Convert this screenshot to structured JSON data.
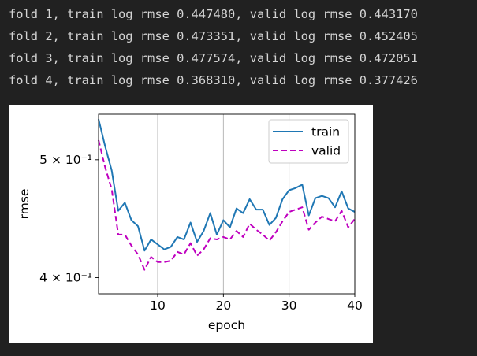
{
  "output": {
    "lines": [
      "fold 1, train log rmse 0.447480, valid log rmse 0.443170",
      "fold 2, train log rmse 0.473351, valid log rmse 0.452405",
      "fold 3, train log rmse 0.477574, valid log rmse 0.472051",
      "fold 4, train log rmse 0.368310, valid log rmse 0.377426"
    ]
  },
  "chart_data": {
    "type": "line",
    "xlabel": "epoch",
    "ylabel": "rmse",
    "yscale": "log",
    "xlim": [
      1,
      40
    ],
    "ylim": [
      0.388,
      0.545
    ],
    "x_ticks": [
      10,
      20,
      30,
      40
    ],
    "x_tick_labels": [
      "10",
      "20",
      "30",
      "40"
    ],
    "y_ticks": [
      0.4,
      0.5
    ],
    "y_tick_labels": [
      "4 × 10⁻¹",
      "5 × 10⁻¹"
    ],
    "grid": "x",
    "legend": "top-right",
    "x": [
      1,
      2,
      3,
      4,
      5,
      6,
      7,
      8,
      9,
      10,
      11,
      12,
      13,
      14,
      15,
      16,
      17,
      18,
      19,
      20,
      21,
      22,
      23,
      24,
      25,
      26,
      27,
      28,
      29,
      30,
      31,
      32,
      33,
      34,
      35,
      36,
      37,
      38,
      39,
      40
    ],
    "series": [
      {
        "name": "train",
        "color": "#1f77b4",
        "style": "solid",
        "values": [
          0.54,
          0.513,
          0.49,
          0.454,
          0.461,
          0.446,
          0.441,
          0.421,
          0.43,
          0.426,
          0.422,
          0.424,
          0.432,
          0.43,
          0.444,
          0.428,
          0.437,
          0.452,
          0.434,
          0.446,
          0.44,
          0.456,
          0.452,
          0.464,
          0.455,
          0.455,
          0.442,
          0.448,
          0.464,
          0.472,
          0.474,
          0.477,
          0.45,
          0.465,
          0.467,
          0.465,
          0.457,
          0.471,
          0.456,
          0.453
        ]
      },
      {
        "name": "valid",
        "color": "#bf00bf",
        "style": "dashed",
        "values": [
          0.519,
          0.493,
          0.473,
          0.434,
          0.434,
          0.425,
          0.418,
          0.406,
          0.416,
          0.412,
          0.412,
          0.413,
          0.42,
          0.418,
          0.427,
          0.417,
          0.422,
          0.431,
          0.43,
          0.432,
          0.43,
          0.437,
          0.432,
          0.443,
          0.438,
          0.434,
          0.429,
          0.436,
          0.445,
          0.453,
          0.455,
          0.457,
          0.438,
          0.444,
          0.449,
          0.447,
          0.445,
          0.454,
          0.44,
          0.447
        ]
      }
    ]
  }
}
